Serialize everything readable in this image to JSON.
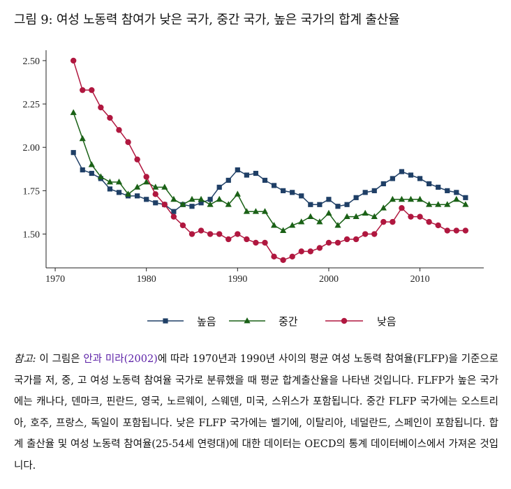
{
  "figure": {
    "title": "그림 9: 여성 노동력 참여가 낮은 국가, 중간 국가, 높은 국가의 합계 출산율"
  },
  "chart_data": {
    "type": "line",
    "title": "",
    "xlabel": "",
    "ylabel": "",
    "xlim": [
      1969,
      2017
    ],
    "ylim": [
      1.305,
      2.56
    ],
    "x_ticks": [
      1970,
      1980,
      1990,
      2000,
      2010
    ],
    "y_ticks": [
      1.5,
      1.75,
      2.0,
      2.25,
      2.5
    ],
    "y_tick_labels": [
      "1.50",
      "1.75",
      "2.00",
      "2.25",
      "2.50"
    ],
    "grid": false,
    "legend_position": "bottom",
    "x": [
      1972,
      1973,
      1974,
      1975,
      1976,
      1977,
      1978,
      1979,
      1980,
      1981,
      1982,
      1983,
      1984,
      1985,
      1986,
      1987,
      1988,
      1989,
      1990,
      1991,
      1992,
      1993,
      1994,
      1995,
      1996,
      1997,
      1998,
      1999,
      2000,
      2001,
      2002,
      2003,
      2004,
      2005,
      2006,
      2007,
      2008,
      2009,
      2010,
      2011,
      2012,
      2013,
      2014,
      2015
    ],
    "series": [
      {
        "name": "높음",
        "color": "#1f3f66",
        "marker": "square",
        "values": [
          1.97,
          1.87,
          1.85,
          1.82,
          1.76,
          1.74,
          1.72,
          1.72,
          1.7,
          1.68,
          1.67,
          1.63,
          1.67,
          1.66,
          1.68,
          1.7,
          1.77,
          1.81,
          1.87,
          1.84,
          1.85,
          1.81,
          1.78,
          1.75,
          1.74,
          1.72,
          1.67,
          1.67,
          1.7,
          1.66,
          1.67,
          1.71,
          1.74,
          1.75,
          1.79,
          1.82,
          1.86,
          1.84,
          1.82,
          1.79,
          1.77,
          1.75,
          1.74,
          1.71
        ]
      },
      {
        "name": "중간",
        "color": "#1a6116",
        "marker": "triangle",
        "values": [
          2.2,
          2.05,
          1.9,
          1.83,
          1.8,
          1.8,
          1.73,
          1.77,
          1.8,
          1.77,
          1.77,
          1.7,
          1.67,
          1.7,
          1.7,
          1.67,
          1.7,
          1.67,
          1.73,
          1.63,
          1.63,
          1.63,
          1.55,
          1.52,
          1.55,
          1.57,
          1.6,
          1.57,
          1.62,
          1.55,
          1.6,
          1.6,
          1.62,
          1.6,
          1.65,
          1.7,
          1.7,
          1.7,
          1.7,
          1.67,
          1.67,
          1.67,
          1.7,
          1.67
        ]
      },
      {
        "name": "낮음",
        "color": "#b0173f",
        "marker": "circle",
        "values": [
          2.5,
          2.33,
          2.33,
          2.23,
          2.17,
          2.1,
          2.03,
          1.93,
          1.83,
          1.73,
          1.67,
          1.6,
          1.55,
          1.5,
          1.52,
          1.5,
          1.5,
          1.47,
          1.5,
          1.47,
          1.45,
          1.45,
          1.37,
          1.35,
          1.37,
          1.4,
          1.4,
          1.42,
          1.45,
          1.45,
          1.47,
          1.47,
          1.5,
          1.5,
          1.57,
          1.57,
          1.65,
          1.6,
          1.6,
          1.57,
          1.55,
          1.52,
          1.52,
          1.52
        ]
      }
    ]
  },
  "note": {
    "label": "참고:",
    "text_1": " 이 그림은 ",
    "citation": "안과 미라(2002)",
    "text_2": "에 따라 1970년과 1990년 사이의 평균 여성 노동력 참여율(FLFP)을 기준으로 국가를 저, 중, 고 여성 노동력 참여율 국가로 분류했을 때 평균 합계출산율을 나타낸 것입니다. FLFP가 높은 국가에는 캐나다, 덴마크, 핀란드, 영국, 노르웨이, 스웨덴, 미국, 스위스가 포함됩니다. 중간 FLFP 국가에는 오스트리아, 호주, 프랑스, 독일이 포함됩니다. 낮은 FLFP 국가에는 벨기에, 이탈리아, 네덜란드, 스페인이 포함됩니다. 합계 출산율 및 여성 노동력 참여율(25-54세 연령대)에 대한 데이터는 OECD의 통계 데이터베이스에서 가져온 것입니다."
  }
}
